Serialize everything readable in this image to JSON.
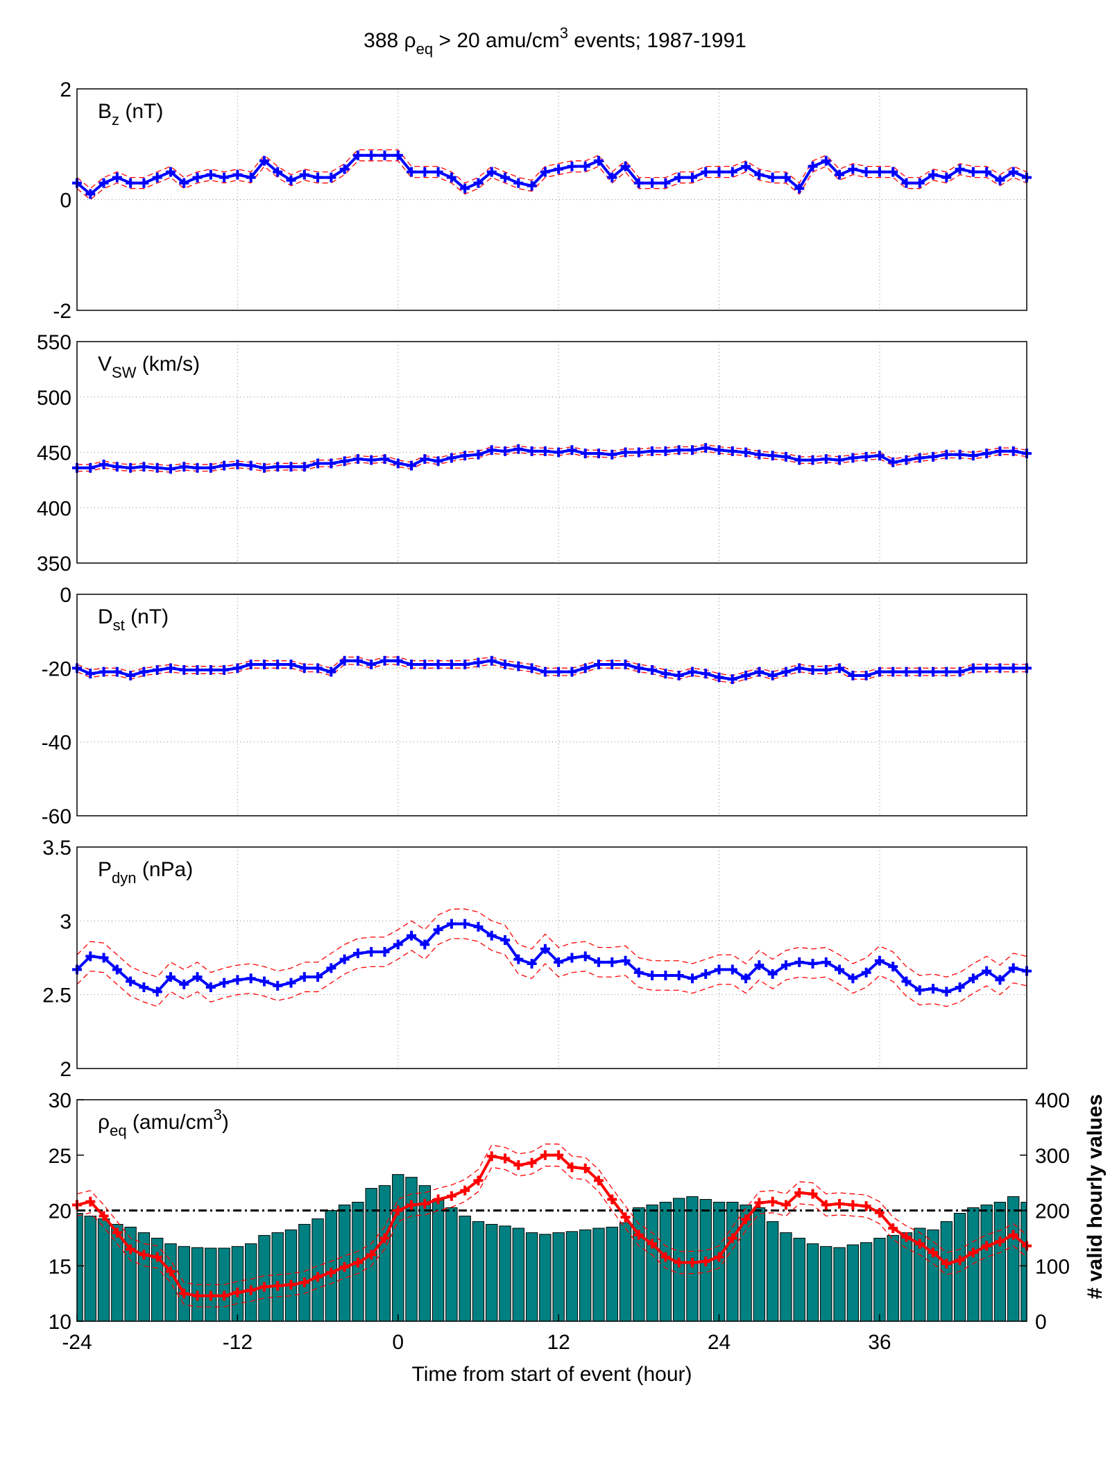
{
  "title": [
    {
      "text": "388 ρ"
    },
    {
      "text": "eq",
      "shift": "sub"
    },
    {
      "text": " > 20 amu/cm"
    },
    {
      "text": "3",
      "shift": "sup"
    },
    {
      "text": " events; 1987-1991"
    }
  ],
  "chart_data": [
    {
      "type": "line",
      "ylabel": [
        {
          "text": "B"
        },
        {
          "text": "z",
          "shift": "sub"
        },
        {
          "text": " (nT)"
        }
      ],
      "x": [
        -24,
        -23,
        -22,
        -21,
        -20,
        -19,
        -18,
        -17,
        -16,
        -15,
        -14,
        -13,
        -12,
        -11,
        -10,
        -9,
        -8,
        -7,
        -6,
        -5,
        -4,
        -3,
        -2,
        -1,
        0,
        1,
        2,
        3,
        4,
        5,
        6,
        7,
        8,
        9,
        10,
        11,
        12,
        13,
        14,
        15,
        16,
        17,
        18,
        19,
        20,
        21,
        22,
        23,
        24,
        25,
        26,
        27,
        28,
        29,
        30,
        31,
        32,
        33,
        34,
        35,
        36,
        37,
        38,
        39,
        40,
        41,
        42,
        43,
        44,
        45,
        46,
        47
      ],
      "values": [
        0.3,
        0.1,
        0.3,
        0.4,
        0.3,
        0.3,
        0.4,
        0.5,
        0.3,
        0.4,
        0.45,
        0.4,
        0.45,
        0.4,
        0.7,
        0.5,
        0.35,
        0.45,
        0.4,
        0.4,
        0.55,
        0.8,
        0.8,
        0.8,
        0.8,
        0.5,
        0.5,
        0.5,
        0.4,
        0.2,
        0.3,
        0.5,
        0.4,
        0.3,
        0.25,
        0.5,
        0.55,
        0.6,
        0.6,
        0.7,
        0.4,
        0.6,
        0.3,
        0.3,
        0.3,
        0.4,
        0.4,
        0.5,
        0.5,
        0.5,
        0.6,
        0.45,
        0.4,
        0.4,
        0.2,
        0.6,
        0.7,
        0.45,
        0.55,
        0.5,
        0.5,
        0.5,
        0.3,
        0.3,
        0.45,
        0.4,
        0.55,
        0.5,
        0.5,
        0.35,
        0.5,
        0.4
      ],
      "error": 0.1,
      "color": "#0000ff",
      "error_color": "#ff0000",
      "xlim": [
        -24,
        47
      ],
      "xticks": [
        -24,
        -12,
        0,
        12,
        24,
        36
      ],
      "ylim": [
        -2,
        2
      ],
      "yticks": [
        -2,
        0,
        2
      ],
      "grid": true
    },
    {
      "type": "line",
      "ylabel": [
        {
          "text": "V"
        },
        {
          "text": "SW",
          "shift": "sub"
        },
        {
          "text": " (km/s)"
        }
      ],
      "x": [
        -24,
        -23,
        -22,
        -21,
        -20,
        -19,
        -18,
        -17,
        -16,
        -15,
        -14,
        -13,
        -12,
        -11,
        -10,
        -9,
        -8,
        -7,
        -6,
        -5,
        -4,
        -3,
        -2,
        -1,
        0,
        1,
        2,
        3,
        4,
        5,
        6,
        7,
        8,
        9,
        10,
        11,
        12,
        13,
        14,
        15,
        16,
        17,
        18,
        19,
        20,
        21,
        22,
        23,
        24,
        25,
        26,
        27,
        28,
        29,
        30,
        31,
        32,
        33,
        34,
        35,
        36,
        37,
        38,
        39,
        40,
        41,
        42,
        43,
        44,
        45,
        46,
        47
      ],
      "values": [
        436,
        436,
        439,
        437,
        436,
        437,
        436,
        435,
        437,
        436,
        436,
        438,
        439,
        438,
        436,
        437,
        437,
        437,
        440,
        440,
        442,
        444,
        443,
        444,
        440,
        438,
        444,
        442,
        445,
        447,
        448,
        452,
        451,
        453,
        451,
        451,
        450,
        452,
        449,
        449,
        448,
        450,
        450,
        451,
        451,
        452,
        452,
        454,
        452,
        451,
        450,
        448,
        447,
        446,
        443,
        443,
        444,
        443,
        445,
        446,
        447,
        441,
        443,
        445,
        446,
        448,
        448,
        447,
        449,
        451,
        451,
        449
      ],
      "error": 3,
      "color": "#0000ff",
      "error_color": "#ff0000",
      "xlim": [
        -24,
        47
      ],
      "xticks": [
        -24,
        -12,
        0,
        12,
        24,
        36
      ],
      "ylim": [
        350,
        550
      ],
      "yticks": [
        350,
        400,
        450,
        500,
        550
      ],
      "grid": true
    },
    {
      "type": "line",
      "ylabel": [
        {
          "text": "D"
        },
        {
          "text": "st",
          "shift": "sub"
        },
        {
          "text": " (nT)"
        }
      ],
      "x": [
        -24,
        -23,
        -22,
        -21,
        -20,
        -19,
        -18,
        -17,
        -16,
        -15,
        -14,
        -13,
        -12,
        -11,
        -10,
        -9,
        -8,
        -7,
        -6,
        -5,
        -4,
        -3,
        -2,
        -1,
        0,
        1,
        2,
        3,
        4,
        5,
        6,
        7,
        8,
        9,
        10,
        11,
        12,
        13,
        14,
        15,
        16,
        17,
        18,
        19,
        20,
        21,
        22,
        23,
        24,
        25,
        26,
        27,
        28,
        29,
        30,
        31,
        32,
        33,
        34,
        35,
        36,
        37,
        38,
        39,
        40,
        41,
        42,
        43,
        44,
        45,
        46,
        47
      ],
      "values": [
        -20,
        -21.5,
        -21,
        -21,
        -22,
        -21,
        -20.5,
        -20,
        -20.5,
        -20.5,
        -20.5,
        -20.5,
        -20,
        -19,
        -19,
        -19,
        -19,
        -20,
        -20,
        -21,
        -18,
        -18,
        -19,
        -18,
        -18,
        -19,
        -19,
        -19,
        -19,
        -19,
        -18.5,
        -18,
        -19,
        -19.5,
        -20,
        -21,
        -21,
        -21,
        -20,
        -19,
        -19,
        -19,
        -20,
        -20.5,
        -21.5,
        -22,
        -21,
        -21.5,
        -22.5,
        -23,
        -22,
        -21,
        -22,
        -21,
        -20,
        -20.5,
        -20.5,
        -20,
        -22,
        -22,
        -21,
        -21,
        -21,
        -21,
        -21,
        -21,
        -21,
        -20,
        -20,
        -20,
        -20,
        -20
      ],
      "error": 1,
      "color": "#0000ff",
      "error_color": "#ff0000",
      "xlim": [
        -24,
        47
      ],
      "xticks": [
        -24,
        -12,
        0,
        12,
        24,
        36
      ],
      "ylim": [
        -60,
        0
      ],
      "yticks": [
        -60,
        -40,
        -20,
        0
      ],
      "grid": true
    },
    {
      "type": "line",
      "ylabel": [
        {
          "text": "P"
        },
        {
          "text": "dyn",
          "shift": "sub"
        },
        {
          "text": " (nPa)"
        }
      ],
      "x": [
        -24,
        -23,
        -22,
        -21,
        -20,
        -19,
        -18,
        -17,
        -16,
        -15,
        -14,
        -13,
        -12,
        -11,
        -10,
        -9,
        -8,
        -7,
        -6,
        -5,
        -4,
        -3,
        -2,
        -1,
        0,
        1,
        2,
        3,
        4,
        5,
        6,
        7,
        8,
        9,
        10,
        11,
        12,
        13,
        14,
        15,
        16,
        17,
        18,
        19,
        20,
        21,
        22,
        23,
        24,
        25,
        26,
        27,
        28,
        29,
        30,
        31,
        32,
        33,
        34,
        35,
        36,
        37,
        38,
        39,
        40,
        41,
        42,
        43,
        44,
        45,
        46,
        47
      ],
      "values": [
        2.67,
        2.76,
        2.75,
        2.67,
        2.59,
        2.55,
        2.52,
        2.62,
        2.57,
        2.62,
        2.55,
        2.58,
        2.6,
        2.61,
        2.59,
        2.56,
        2.58,
        2.62,
        2.62,
        2.68,
        2.74,
        2.78,
        2.79,
        2.79,
        2.84,
        2.9,
        2.84,
        2.94,
        2.98,
        2.98,
        2.96,
        2.9,
        2.87,
        2.74,
        2.71,
        2.81,
        2.72,
        2.75,
        2.76,
        2.72,
        2.72,
        2.73,
        2.65,
        2.63,
        2.63,
        2.63,
        2.61,
        2.64,
        2.67,
        2.67,
        2.61,
        2.7,
        2.64,
        2.7,
        2.72,
        2.71,
        2.72,
        2.67,
        2.61,
        2.65,
        2.73,
        2.69,
        2.59,
        2.53,
        2.54,
        2.52,
        2.55,
        2.61,
        2.66,
        2.6,
        2.68,
        2.66
      ],
      "error": 0.1,
      "color": "#0000ff",
      "error_color": "#ff0000",
      "xlim": [
        -24,
        47
      ],
      "xticks": [
        -24,
        -12,
        0,
        12,
        24,
        36
      ],
      "ylim": [
        2,
        3.5
      ],
      "yticks": [
        2,
        2.5,
        3,
        3.5
      ],
      "grid": true
    },
    {
      "type": "combo",
      "ylabel": [
        {
          "text": "ρ"
        },
        {
          "text": "eq",
          "shift": "sub"
        },
        {
          "text": " (amu/cm"
        },
        {
          "text": "3",
          "shift": "sup"
        },
        {
          "text": ")"
        }
      ],
      "x": [
        -24,
        -23,
        -22,
        -21,
        -20,
        -19,
        -18,
        -17,
        -16,
        -15,
        -14,
        -13,
        -12,
        -11,
        -10,
        -9,
        -8,
        -7,
        -6,
        -5,
        -4,
        -3,
        -2,
        -1,
        0,
        1,
        2,
        3,
        4,
        5,
        6,
        7,
        8,
        9,
        10,
        11,
        12,
        13,
        14,
        15,
        16,
        17,
        18,
        19,
        20,
        21,
        22,
        23,
        24,
        25,
        26,
        27,
        28,
        29,
        30,
        31,
        32,
        33,
        34,
        35,
        36,
        37,
        38,
        39,
        40,
        41,
        42,
        43,
        44,
        45,
        46,
        47
      ],
      "values": [
        20.5,
        20.8,
        19.5,
        18,
        16.5,
        16,
        15.8,
        14.5,
        12.5,
        12.3,
        12.3,
        12.3,
        12.6,
        12.8,
        13.1,
        13.2,
        13.3,
        13.5,
        14,
        14.4,
        14.9,
        15.3,
        16,
        17.5,
        20,
        20.5,
        20.6,
        21,
        21.3,
        21.8,
        22.7,
        24.9,
        24.7,
        24.1,
        24.3,
        25,
        25,
        23.9,
        23.8,
        22.7,
        21,
        19.4,
        17.8,
        17,
        15.8,
        15.3,
        15.3,
        15.4,
        15.8,
        17.5,
        19.2,
        20.7,
        20.8,
        20.5,
        21.6,
        21.5,
        20.5,
        20.6,
        20.5,
        20.4,
        19.8,
        18.4,
        17.6,
        17,
        16.2,
        15.2,
        15.5,
        16.2,
        16.8,
        17.2,
        17.8,
        16.8
      ],
      "error": 1,
      "color": "#ff0000",
      "error_color": "#ff0000",
      "ytick_color": "#ff0000",
      "bar_values": [
        195,
        190,
        185,
        175,
        170,
        160,
        150,
        140,
        135,
        133,
        132,
        132,
        135,
        140,
        155,
        160,
        165,
        175,
        185,
        200,
        210,
        215,
        240,
        245,
        265,
        260,
        245,
        220,
        205,
        190,
        180,
        175,
        172,
        168,
        160,
        157,
        160,
        162,
        165,
        168,
        170,
        178,
        205,
        210,
        215,
        222,
        225,
        220,
        215,
        215,
        210,
        205,
        180,
        160,
        150,
        140,
        135,
        133,
        138,
        142,
        150,
        155,
        160,
        168,
        165,
        180,
        195,
        205,
        210,
        215,
        225,
        215
      ],
      "bar_color": "#008080",
      "threshold": 20,
      "xlim": [
        -24,
        47
      ],
      "xticks": [
        -24,
        -12,
        0,
        12,
        24,
        36
      ],
      "ylim": [
        10,
        30
      ],
      "yticks": [
        10,
        15,
        20,
        25,
        30
      ],
      "y2lim": [
        0,
        400
      ],
      "y2ticks": [
        0,
        100,
        200,
        300,
        400
      ],
      "y2tick_color": "#008080",
      "y2label": "# valid hourly values",
      "xlabel": "Time from start of event (hour)",
      "grid": false
    }
  ]
}
